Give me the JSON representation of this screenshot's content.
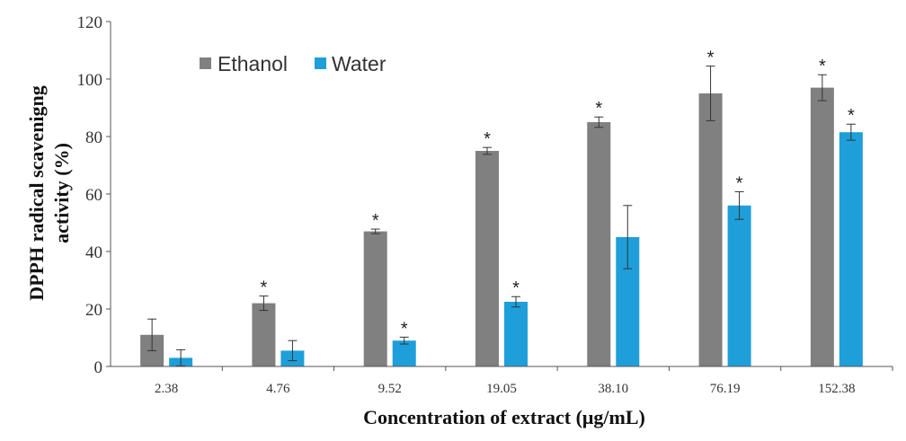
{
  "chart_data": {
    "type": "bar",
    "title": "",
    "xlabel": "Concentration of extract (μg/mL)",
    "ylabel_lines": [
      "DPPH radical scavenigng",
      "activity  (%)"
    ],
    "categories": [
      "2.38",
      "4.76",
      "9.52",
      "19.05",
      "38.10",
      "76.19",
      "152.38"
    ],
    "ylim": [
      0,
      120
    ],
    "yticks": [
      0,
      20,
      40,
      60,
      80,
      100,
      120
    ],
    "ytick_labels": [
      "0",
      "20",
      "40",
      "60",
      "80",
      "100",
      "120"
    ],
    "grid": false,
    "legend_position": "top-left",
    "significance_symbol": "*",
    "series": [
      {
        "name": "Ethanol",
        "color": "#808080",
        "values": [
          11,
          22,
          47,
          75,
          85,
          95,
          97
        ],
        "errors": [
          5.5,
          2.5,
          0.8,
          1.2,
          1.8,
          9.5,
          4.5
        ],
        "significant": [
          false,
          true,
          true,
          true,
          true,
          true,
          true
        ]
      },
      {
        "name": "Water",
        "color": "#1e9fda",
        "values": [
          3,
          5.5,
          9,
          22.5,
          45,
          56,
          81.5
        ],
        "errors": [
          2.8,
          3.5,
          1.2,
          1.8,
          11,
          4.8,
          2.8
        ],
        "significant": [
          false,
          false,
          true,
          true,
          false,
          true,
          true
        ]
      }
    ]
  }
}
